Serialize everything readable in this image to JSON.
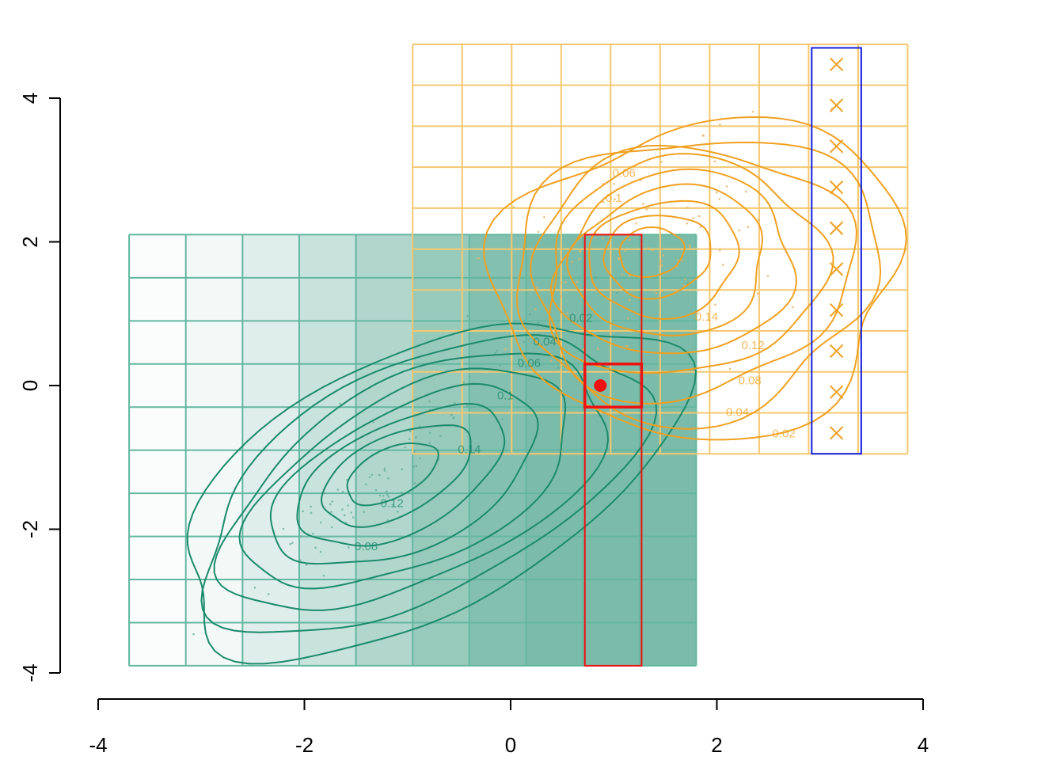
{
  "chart_data": {
    "type": "contour",
    "xlim": [
      -4,
      4
    ],
    "ylim": [
      -4,
      4
    ],
    "x_ticks": [
      -4,
      -2,
      0,
      2,
      4
    ],
    "y_ticks": [
      -4,
      -2,
      0,
      2,
      4
    ],
    "x_tick_labels": [
      "-4",
      "-2",
      "0",
      "2",
      "4"
    ],
    "y_tick_labels": [
      "-4",
      "-2",
      "0",
      "2",
      "4"
    ],
    "grid": false,
    "densities": [
      {
        "color": "#1b8a6b",
        "grid_color": "#63b7a0",
        "x_breaks": [
          -3.7,
          -3.15,
          -2.6,
          -2.05,
          -1.5,
          -0.95,
          -0.4,
          0.15,
          0.7,
          1.25,
          1.8
        ],
        "y_breaks": [
          -3.9,
          -3.3,
          -2.7,
          -2.1,
          -1.5,
          -0.9,
          -0.3,
          0.3,
          0.9,
          1.5,
          2.1
        ],
        "column_shading": [
          0.02,
          0.05,
          0.14,
          0.24,
          0.34,
          0.45,
          0.54,
          0.58,
          0.58,
          0.58
        ],
        "peak": {
          "x": -1.2,
          "y": -1.2
        },
        "contour_levels": [
          "0.02",
          "0.04",
          "0.06",
          "0.08",
          "0.1",
          "0.12",
          "0.14"
        ],
        "labeled_levels": [
          "0.02",
          "0.04",
          "0.06",
          "0.1",
          "0.14",
          "0.12",
          "0.08"
        ]
      },
      {
        "color": "#f0a020",
        "grid_color": "#f5c870",
        "x_breaks": [
          -0.95,
          -0.47,
          0.01,
          0.49,
          0.97,
          1.45,
          1.93,
          2.41,
          2.89,
          3.37,
          3.85
        ],
        "y_breaks": [
          -0.95,
          -0.38,
          0.19,
          0.76,
          1.33,
          1.9,
          2.47,
          3.04,
          3.61,
          4.18,
          4.75
        ],
        "peak": {
          "x": 1.3,
          "y": 1.9
        },
        "contour_levels": [
          "0.02",
          "0.04",
          "0.06",
          "0.08",
          "0.1",
          "0.12",
          "0.14"
        ],
        "labeled_levels": [
          "0.06",
          "0.1",
          "0.14",
          "0.12",
          "0.08",
          "0.04",
          "0.02"
        ]
      }
    ],
    "highlights": {
      "red_column": {
        "x_range": [
          0.72,
          1.27
        ],
        "y_range": [
          -3.9,
          2.1
        ]
      },
      "red_cell": {
        "x_range": [
          0.72,
          1.27
        ],
        "y_range": [
          -0.3,
          0.3
        ]
      },
      "point": {
        "x": 0.87,
        "y": 0.0
      },
      "blue_column": {
        "x_range": [
          2.92,
          3.4
        ],
        "y_range": [
          -0.95,
          4.7
        ]
      },
      "cross_markers": {
        "x": 3.16,
        "y": [
          -0.66,
          -0.09,
          0.48,
          1.05,
          1.62,
          2.19,
          2.76,
          3.33,
          3.9,
          4.47
        ]
      }
    }
  }
}
